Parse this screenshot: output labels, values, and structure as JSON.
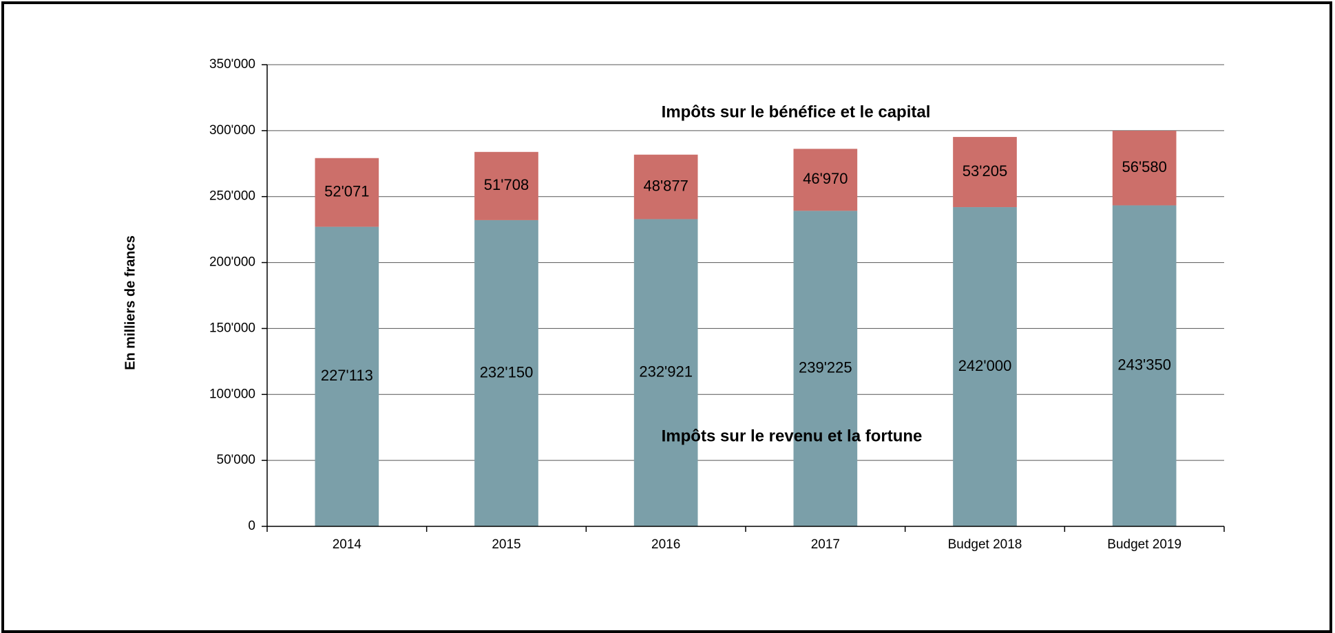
{
  "chart_data": {
    "type": "stacked_bar",
    "ylabel": "En milliers de francs",
    "categories": [
      "2014",
      "2015",
      "2016",
      "2017",
      "Budget 2018",
      "Budget 2019"
    ],
    "series": [
      {
        "name": "Impôts sur le revenu et la fortune",
        "color": "#7b9fa9",
        "values": [
          227113,
          232150,
          232921,
          239225,
          242000,
          243350
        ],
        "value_labels": [
          "227'113",
          "232'150",
          "232'921",
          "239'225",
          "242'000",
          "243'350"
        ]
      },
      {
        "name": "Impôts sur le bénéfice et le capital",
        "color": "#cc6f6a",
        "values": [
          52071,
          51708,
          48877,
          46970,
          53205,
          56580
        ],
        "value_labels": [
          "52'071",
          "51'708",
          "48'877",
          "46'970",
          "53'205",
          "56'580"
        ]
      }
    ],
    "ylim": [
      0,
      350000
    ],
    "yticks": [
      0,
      {
        "value": 50000,
        "label": "50'000"
      },
      {
        "value": 100000,
        "label": "100'000"
      },
      {
        "value": 150000,
        "label": "150'000"
      },
      {
        "value": 200000,
        "label": "200'000"
      },
      {
        "value": 250000,
        "label": "250'000"
      },
      {
        "value": 300000,
        "label": "300'000"
      },
      {
        "value": 350000,
        "label": "350'000"
      }
    ],
    "grid": true
  }
}
